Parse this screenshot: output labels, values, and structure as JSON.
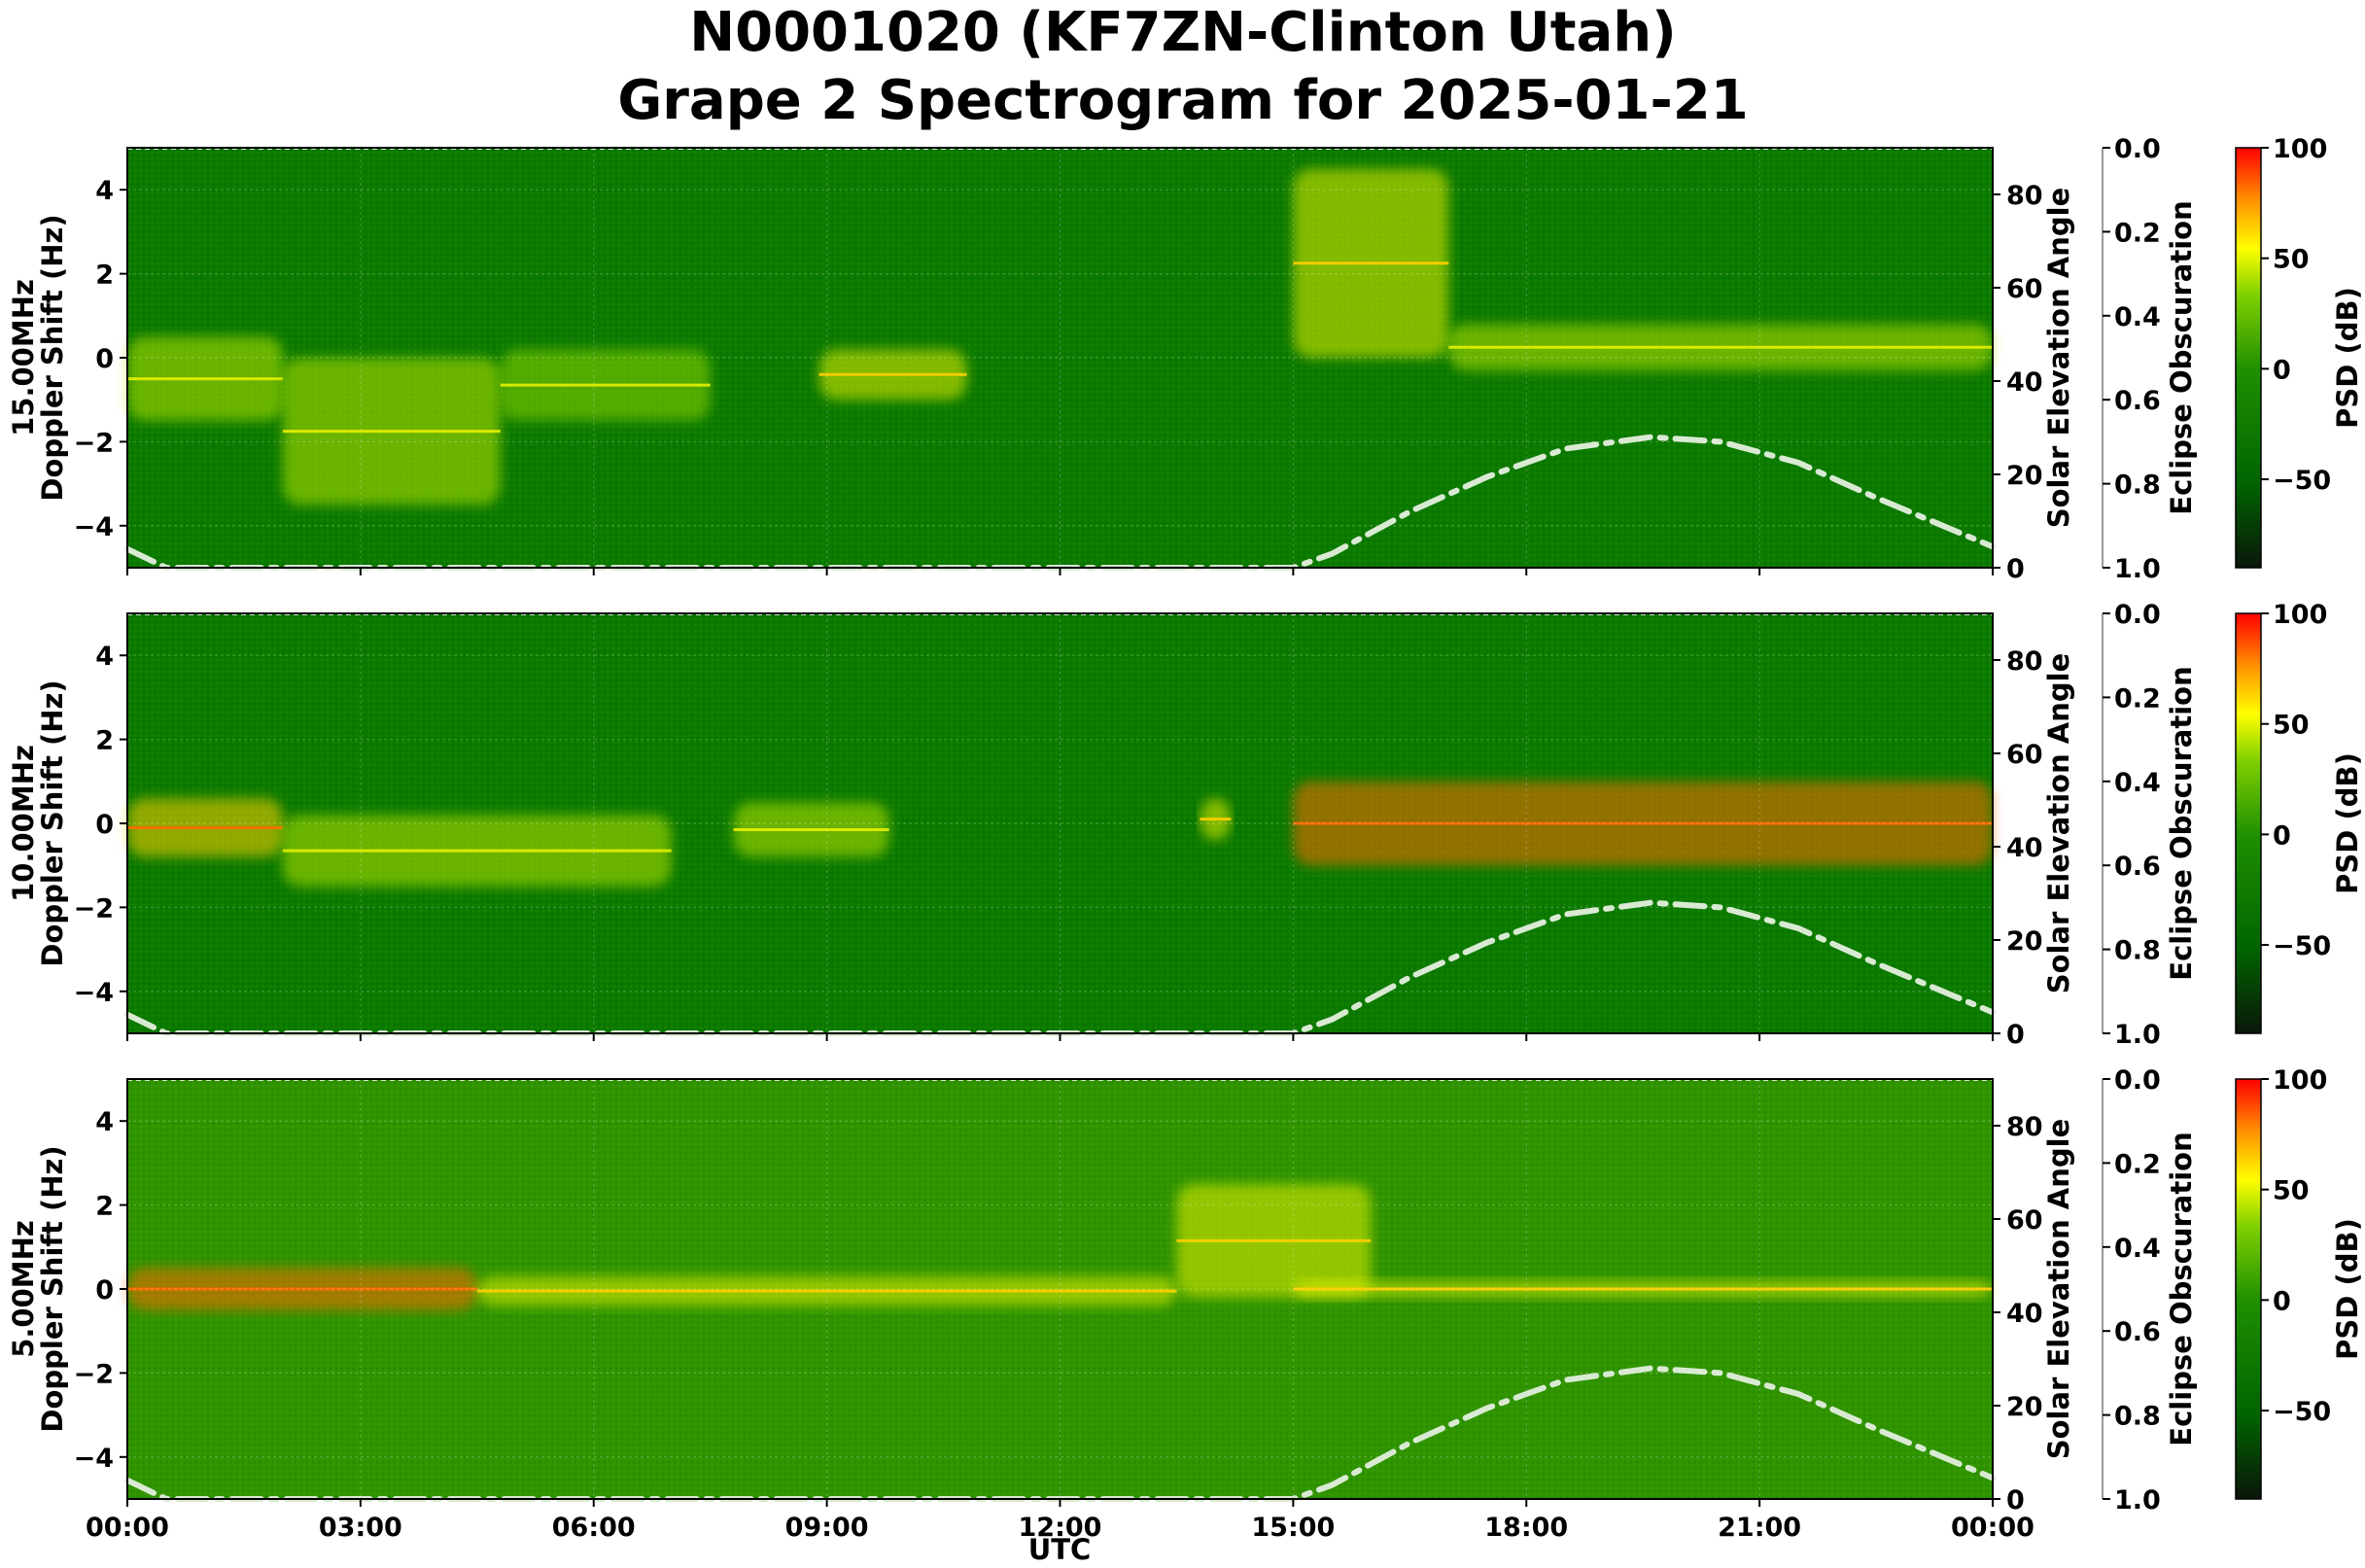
{
  "title_line1": "N0001020 (KF7ZN-Clinton Utah)",
  "title_line2": "Grape 2 Spectrogram for 2025-01-21",
  "chart_data": {
    "type": "heatmap",
    "x_axis": {
      "label": "UTC",
      "range_hours": [
        0,
        24
      ],
      "tick_labels": [
        "00:00",
        "03:00",
        "06:00",
        "09:00",
        "12:00",
        "15:00",
        "18:00",
        "21:00",
        "00:00"
      ]
    },
    "y_axis": {
      "range": [
        -5,
        5
      ],
      "tick_values": [
        4,
        2,
        0,
        -2,
        -4
      ],
      "tick_labels": [
        "4",
        "2",
        "0",
        "−2",
        "−4"
      ]
    },
    "right_axis": {
      "label": "Solar Elevation Angle",
      "range": [
        0,
        90
      ],
      "tick_labels": [
        "80",
        "60",
        "40",
        "20",
        "0"
      ],
      "tick_values": [
        80,
        60,
        40,
        20,
        0
      ]
    },
    "eclipse_axis": {
      "label": "Eclipse Obscuration",
      "range": [
        0.0,
        1.0
      ],
      "tick_labels": [
        "0.0",
        "0.2",
        "0.4",
        "0.6",
        "0.8",
        "1.0"
      ]
    },
    "colorbar": {
      "label": "PSD (dB)",
      "range": [
        -90,
        100
      ],
      "tick_labels": [
        "100",
        "50",
        "0",
        "−50"
      ],
      "tick_values": [
        100,
        50,
        0,
        -50
      ],
      "colors": [
        "#0a160a",
        "#006400",
        "#1f8f00",
        "#7fd000",
        "#ffff00",
        "#ff8c00",
        "#ff0000"
      ]
    },
    "solar_elevation": {
      "style": "dash-dot",
      "color": "#d9ead3",
      "points": [
        [
          0.0,
          4.0
        ],
        [
          0.5,
          0.0
        ],
        [
          15.0,
          0.0
        ],
        [
          15.5,
          3.0
        ],
        [
          16.5,
          12.0
        ],
        [
          17.5,
          19.5
        ],
        [
          18.5,
          25.5
        ],
        [
          19.6,
          28.0
        ],
        [
          20.5,
          27.0
        ],
        [
          21.5,
          22.5
        ],
        [
          22.5,
          15.0
        ],
        [
          23.5,
          8.0
        ],
        [
          24.0,
          4.5
        ]
      ]
    },
    "panels": [
      {
        "frequency_label": "15.00MHz",
        "ylabel": "Doppler Shift (Hz)",
        "features": [
          {
            "t0": 0.0,
            "t1": 2.0,
            "f0": -1.5,
            "f1": 0.5,
            "psd": 40
          },
          {
            "t0": 2.0,
            "t1": 4.8,
            "f0": -3.5,
            "f1": 0.0,
            "psd": 45
          },
          {
            "t0": 4.8,
            "t1": 7.5,
            "f0": -1.5,
            "f1": 0.2,
            "psd": 35
          },
          {
            "t0": 8.9,
            "t1": 10.8,
            "f0": -1.0,
            "f1": 0.2,
            "psd": 50
          },
          {
            "t0": 15.0,
            "t1": 17.0,
            "f0": 0.0,
            "f1": 4.5,
            "psd": 55
          },
          {
            "t0": 17.0,
            "t1": 24.0,
            "f0": -0.3,
            "f1": 0.8,
            "psd": 45
          }
        ]
      },
      {
        "frequency_label": "10.00MHz",
        "ylabel": "Doppler Shift (Hz)",
        "features": [
          {
            "t0": 0.0,
            "t1": 2.0,
            "f0": -0.8,
            "f1": 0.6,
            "psd": 75
          },
          {
            "t0": 2.0,
            "t1": 7.0,
            "f0": -1.5,
            "f1": 0.2,
            "psd": 45
          },
          {
            "t0": 7.8,
            "t1": 9.8,
            "f0": -0.8,
            "f1": 0.5,
            "psd": 45
          },
          {
            "t0": 13.8,
            "t1": 14.2,
            "f0": -0.4,
            "f1": 0.6,
            "psd": 55
          },
          {
            "t0": 15.0,
            "t1": 24.0,
            "f0": -1.0,
            "f1": 1.0,
            "psd": 80
          }
        ]
      },
      {
        "frequency_label": "5.00MHz",
        "ylabel": "Doppler Shift (Hz)",
        "features": [
          {
            "t0": 0.0,
            "t1": 4.5,
            "f0": -0.5,
            "f1": 0.5,
            "psd": 80
          },
          {
            "t0": 4.5,
            "t1": 13.5,
            "f0": -0.4,
            "f1": 0.3,
            "psd": 55
          },
          {
            "t0": 13.5,
            "t1": 16.0,
            "f0": -0.2,
            "f1": 2.5,
            "psd": 60
          },
          {
            "t0": 15.0,
            "t1": 24.0,
            "f0": -0.2,
            "f1": 0.2,
            "psd": 60
          }
        ]
      }
    ]
  }
}
